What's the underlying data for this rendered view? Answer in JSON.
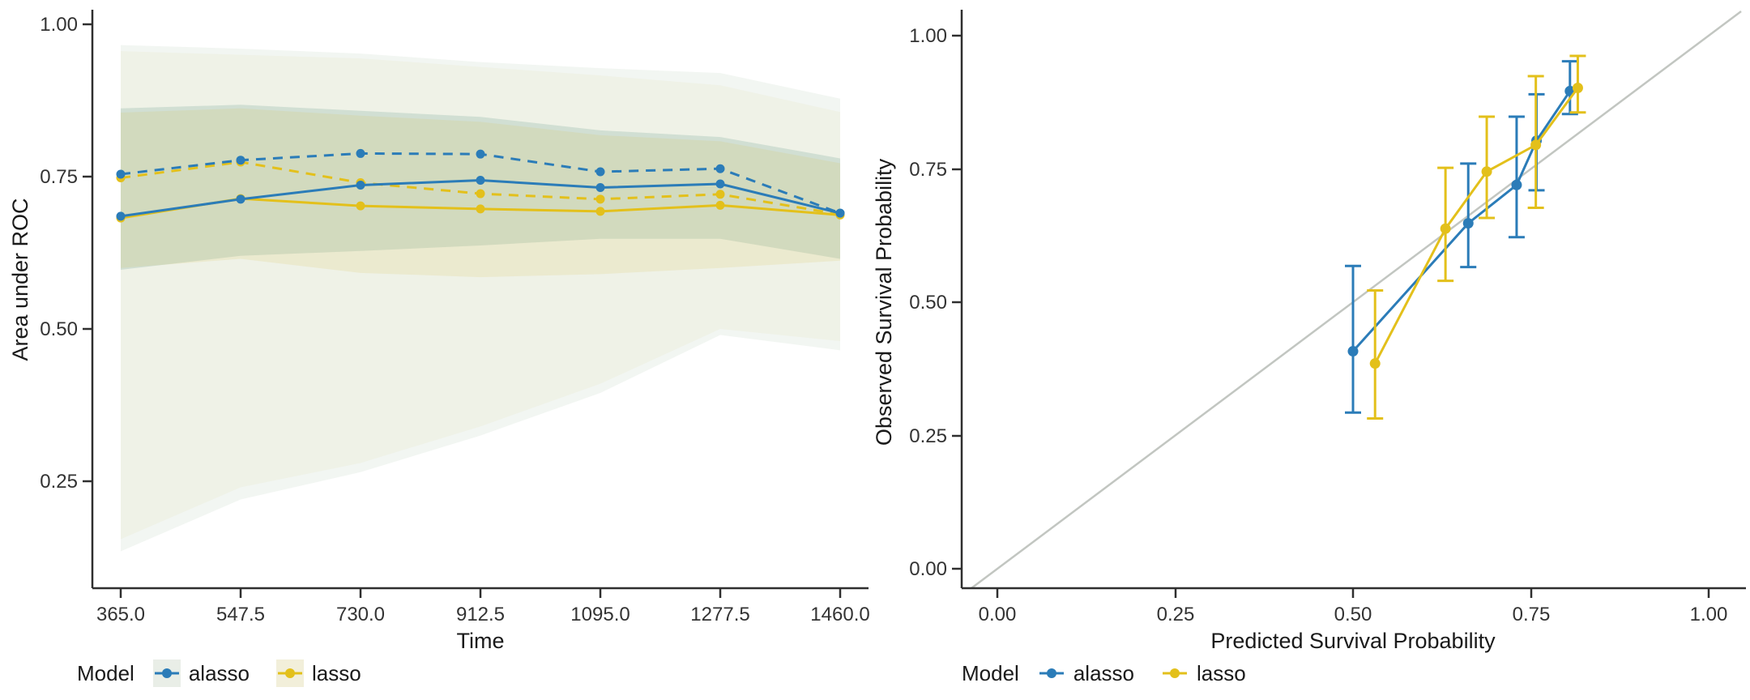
{
  "left_plot": {
    "y_title": "Area under ROC",
    "x_title": "Time",
    "y_ticks": [
      "1.00",
      "0.75",
      "0.50",
      "0.25"
    ],
    "x_ticks": [
      "365.0",
      "547.5",
      "730.0",
      "912.5",
      "1095.0",
      "1277.5",
      "1460.0"
    ],
    "legend": {
      "title": "Model",
      "items": [
        {
          "label": "alasso",
          "color": "#2b7cb8",
          "key_bg": "#e9eee7"
        },
        {
          "label": "lasso",
          "color": "#e3c01b",
          "key_bg": "#f2efda"
        }
      ]
    }
  },
  "right_plot": {
    "y_title": "Observed Survival Probability",
    "x_title": "Predicted Survival Probability",
    "y_ticks": [
      "1.00",
      "0.75",
      "0.50",
      "0.25",
      "0.00"
    ],
    "x_ticks": [
      "0.00",
      "0.25",
      "0.50",
      "0.75",
      "1.00"
    ],
    "legend": {
      "title": "Model",
      "items": [
        {
          "label": "alasso",
          "color": "#2b7cb8"
        },
        {
          "label": "lasso",
          "color": "#e3c01b"
        }
      ]
    }
  },
  "chart_data": [
    {
      "type": "line",
      "title": "",
      "xlabel": "Time",
      "ylabel": "Area under ROC",
      "x": [
        365.0,
        547.5,
        730.0,
        912.5,
        1095.0,
        1277.5,
        1460.0
      ],
      "xticks": [
        365.0,
        547.5,
        730.0,
        912.5,
        1095.0,
        1277.5,
        1460.0
      ],
      "yticks": [
        1.0,
        0.75,
        0.5,
        0.25
      ],
      "ylim": [
        0.07,
        1.01
      ],
      "grid": false,
      "legend_position": "bottom",
      "series": [
        {
          "name": "lasso",
          "linetype": "dashed",
          "color": "#e3c01b",
          "values": [
            0.748,
            0.774,
            0.74,
            0.722,
            0.713,
            0.721,
            0.688
          ]
        },
        {
          "name": "alasso",
          "linetype": "dashed",
          "color": "#2b7cb8",
          "values": [
            0.754,
            0.777,
            0.788,
            0.787,
            0.758,
            0.763,
            0.69
          ]
        },
        {
          "name": "lasso",
          "linetype": "solid",
          "color": "#e3c01b",
          "values": [
            0.682,
            0.714,
            0.702,
            0.697,
            0.693,
            0.703,
            0.687
          ]
        },
        {
          "name": "alasso",
          "linetype": "solid",
          "color": "#2b7cb8",
          "values": [
            0.685,
            0.713,
            0.736,
            0.744,
            0.732,
            0.738,
            0.69
          ]
        }
      ],
      "ribbons": [
        {
          "name": "alasso-wide-ci",
          "color": "#7ba883",
          "opacity": 0.1,
          "upper": [
            0.966,
            0.96,
            0.952,
            0.938,
            0.928,
            0.92,
            0.878
          ],
          "lower": [
            0.135,
            0.22,
            0.265,
            0.325,
            0.395,
            0.49,
            0.465
          ]
        },
        {
          "name": "lasso-wide-ci",
          "color": "#d8cc8a",
          "opacity": 0.1,
          "upper": [
            0.956,
            0.95,
            0.944,
            0.93,
            0.916,
            0.9,
            0.856
          ],
          "lower": [
            0.155,
            0.24,
            0.28,
            0.34,
            0.41,
            0.5,
            0.48
          ]
        },
        {
          "name": "alasso-narrow-ci",
          "color": "#4f8e82",
          "opacity": 0.19,
          "upper": [
            0.862,
            0.868,
            0.858,
            0.848,
            0.826,
            0.815,
            0.78
          ],
          "lower": [
            0.597,
            0.62,
            0.628,
            0.637,
            0.648,
            0.648,
            0.615
          ]
        },
        {
          "name": "lasso-narrow-ci",
          "color": "#dcc25a",
          "opacity": 0.17,
          "upper": [
            0.855,
            0.862,
            0.85,
            0.84,
            0.818,
            0.808,
            0.772
          ],
          "lower": [
            0.6,
            0.615,
            0.592,
            0.585,
            0.59,
            0.6,
            0.612
          ]
        }
      ]
    },
    {
      "type": "scatter",
      "title": "",
      "xlabel": "Predicted Survival Probability",
      "ylabel": "Observed Survival Probability",
      "xticks": [
        0.0,
        0.25,
        0.5,
        0.75,
        1.0
      ],
      "yticks": [
        1.0,
        0.75,
        0.5,
        0.25,
        0.0
      ],
      "xlim": [
        -0.05,
        1.05
      ],
      "ylim": [
        -0.04,
        1.05
      ],
      "diagonal_reference_line": true,
      "reference_line_color": "#c2c6c1",
      "series": [
        {
          "name": "alasso",
          "color": "#2b7cb8",
          "points": [
            {
              "x": 0.5,
              "y": 0.408,
              "lo": 0.293,
              "hi": 0.568
            },
            {
              "x": 0.662,
              "y": 0.648,
              "lo": 0.566,
              "hi": 0.76
            },
            {
              "x": 0.73,
              "y": 0.72,
              "lo": 0.622,
              "hi": 0.848
            },
            {
              "x": 0.758,
              "y": 0.803,
              "lo": 0.71,
              "hi": 0.89
            },
            {
              "x": 0.805,
              "y": 0.896,
              "lo": 0.853,
              "hi": 0.952
            }
          ]
        },
        {
          "name": "lasso",
          "color": "#e3c01b",
          "points": [
            {
              "x": 0.531,
              "y": 0.385,
              "lo": 0.282,
              "hi": 0.522
            },
            {
              "x": 0.63,
              "y": 0.638,
              "lo": 0.54,
              "hi": 0.752
            },
            {
              "x": 0.688,
              "y": 0.745,
              "lo": 0.658,
              "hi": 0.848
            },
            {
              "x": 0.757,
              "y": 0.795,
              "lo": 0.677,
              "hi": 0.924
            },
            {
              "x": 0.816,
              "y": 0.902,
              "lo": 0.856,
              "hi": 0.962
            }
          ]
        }
      ]
    }
  ]
}
